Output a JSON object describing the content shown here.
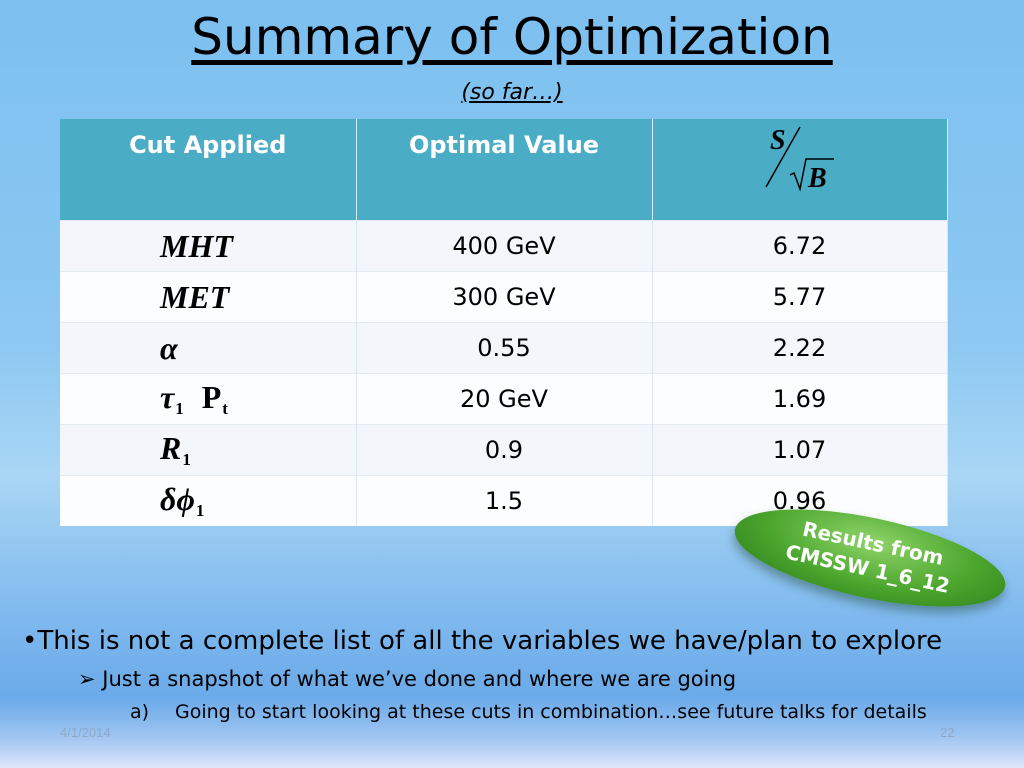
{
  "slide": {
    "title": "Summary of Optimization",
    "subtitle": "(so far…)"
  },
  "table": {
    "headers": [
      "Cut Applied",
      "Optimal Value"
    ],
    "header3": {
      "numerator": "S",
      "denominator": "B"
    },
    "rows": [
      {
        "var": "MHT",
        "sub": "",
        "value": "400 GeV",
        "sb": "6.72"
      },
      {
        "var": "MET",
        "sub": "",
        "value": "300 GeV",
        "sb": "5.77"
      },
      {
        "var": "α",
        "sub": "",
        "value": "0.55",
        "sb": "2.22"
      },
      {
        "var": "τ",
        "sub": "1",
        "extra": "P",
        "extra_sub": "t",
        "value": "20 GeV",
        "sb": "1.69"
      },
      {
        "var": "R",
        "sub": "1",
        "value": "0.9",
        "sb": "1.07"
      },
      {
        "var": "δϕ",
        "sub": "1",
        "value": "1.5",
        "sb": "0.96"
      }
    ]
  },
  "badge": {
    "line1": "Results from",
    "line2": "CMSSW 1_6_12"
  },
  "bullets": {
    "level1": "This is not a complete list of all the variables we have/plan to explore",
    "level1_marker": "•",
    "level2": "Just a snapshot of what we’ve done and where we are going",
    "level2_marker": "➢",
    "level3": "Going to start looking at these cuts in combination…see future talks for details",
    "level3_marker": "a)"
  },
  "footer": {
    "date": "4/1/2014",
    "page": "22"
  },
  "colors": {
    "header_bg": "#4bacc6",
    "badge_green": "#4aa52c"
  }
}
